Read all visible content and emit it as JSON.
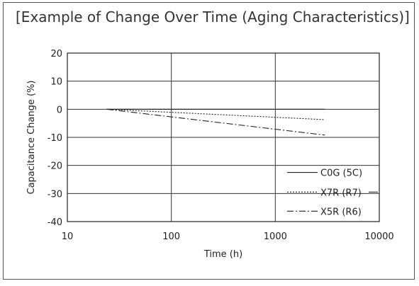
{
  "chart_data": {
    "type": "line",
    "title": "[Example of Change Over Time (Aging Characteristics)]",
    "xlabel": "Time (h)",
    "ylabel": "Capacitance Change (%)",
    "xscale": "log",
    "xlim": [
      10,
      10000
    ],
    "ylim": [
      -40,
      20
    ],
    "x_ticks": [
      10,
      100,
      1000,
      10000
    ],
    "x_tick_labels": [
      "10",
      "100",
      "1000",
      "10000"
    ],
    "y_ticks": [
      20,
      10,
      0,
      -10,
      -20,
      -30,
      -40
    ],
    "y_tick_labels": [
      "20",
      "10",
      "0",
      "-10",
      "-20",
      "-30",
      "-40"
    ],
    "grid": "major",
    "legend_position": "bottom-right",
    "series": [
      {
        "name": "C0G (5C)",
        "style": "solid",
        "x": [
          24,
          3000
        ],
        "y": [
          0,
          0
        ]
      },
      {
        "name": "X7R (R7)",
        "style": "dotted",
        "x": [
          24,
          3000
        ],
        "y": [
          0,
          -3.7
        ]
      },
      {
        "name": "X5R (R6)",
        "style": "dashdot",
        "x": [
          24,
          3000
        ],
        "y": [
          0,
          -9.2
        ]
      }
    ]
  }
}
